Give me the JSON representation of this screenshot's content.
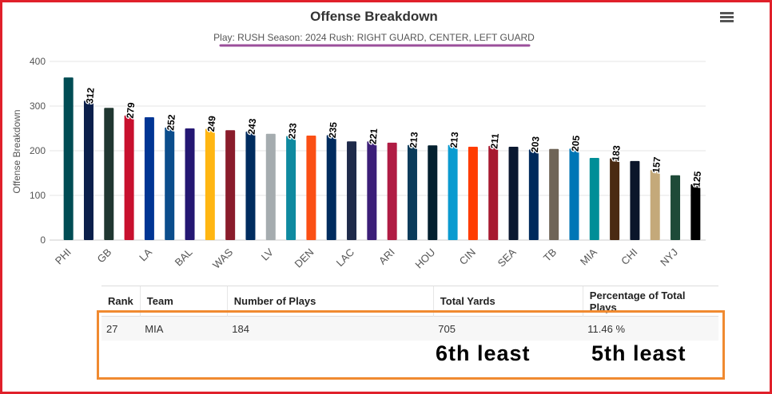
{
  "chart_data": {
    "type": "bar",
    "title": "Offense Breakdown",
    "subtitle": "Play: RUSH Season: 2024 Rush: RIGHT GUARD, CENTER, LEFT GUARD",
    "y_label": "Offense Breakdown",
    "categories": [
      "PHI",
      null,
      "GB",
      null,
      "LA",
      null,
      "BAL",
      null,
      "WAS",
      null,
      "LV",
      null,
      "DEN",
      null,
      "LAC",
      null,
      "ARI",
      null,
      "HOU",
      null,
      "CIN",
      null,
      "SEA",
      null,
      "TB",
      null,
      "MIA",
      null,
      "CHI",
      null,
      "NYJ",
      null
    ],
    "values": [
      364,
      312,
      296,
      279,
      275,
      252,
      250,
      249,
      246,
      243,
      238,
      233,
      234,
      235,
      221,
      221,
      218,
      213,
      212,
      213,
      209,
      211,
      209,
      203,
      204,
      205,
      184,
      183,
      177,
      157,
      145,
      125
    ],
    "value_labels": [
      null,
      "312",
      null,
      "279",
      null,
      "252",
      null,
      "249",
      null,
      "243",
      null,
      "233",
      null,
      "235",
      null,
      "221",
      null,
      "213",
      null,
      "213",
      null,
      "211",
      null,
      "203",
      null,
      "205",
      null,
      "183",
      null,
      "157",
      null,
      "125"
    ],
    "colors": [
      "#004c54",
      "#0b1f4b",
      "#203731",
      "#c8102e",
      "#003594",
      "#0b4d8c",
      "#241773",
      "#ffb612",
      "#8a1c2b",
      "#002c5f",
      "#a5acaf",
      "#0f8aa0",
      "#fb4f14",
      "#002c5f",
      "#1e2a4a",
      "#3b1e78",
      "#b01c44",
      "#0b3b5a",
      "#03202f",
      "#0a9bd0",
      "#ff3c00",
      "#a71930",
      "#0a1830",
      "#002a5c",
      "#6f6457",
      "#0076b6",
      "#008e97",
      "#4a2a12",
      "#0b162a",
      "#c4a97a",
      "#1e4a38",
      "#000000"
    ],
    "ylim": [
      0,
      400
    ],
    "yticks": [
      0,
      100,
      200,
      300,
      400
    ],
    "grid": true
  },
  "table": {
    "header": [
      "Rank",
      "Team",
      "Number of Plays",
      "Total Yards",
      "Percentage of Total Plays"
    ],
    "rows": [
      [
        "27",
        "MIA",
        "184",
        "705",
        "11.46 %"
      ]
    ]
  },
  "annotations": [
    "6th least",
    "5th least"
  ]
}
